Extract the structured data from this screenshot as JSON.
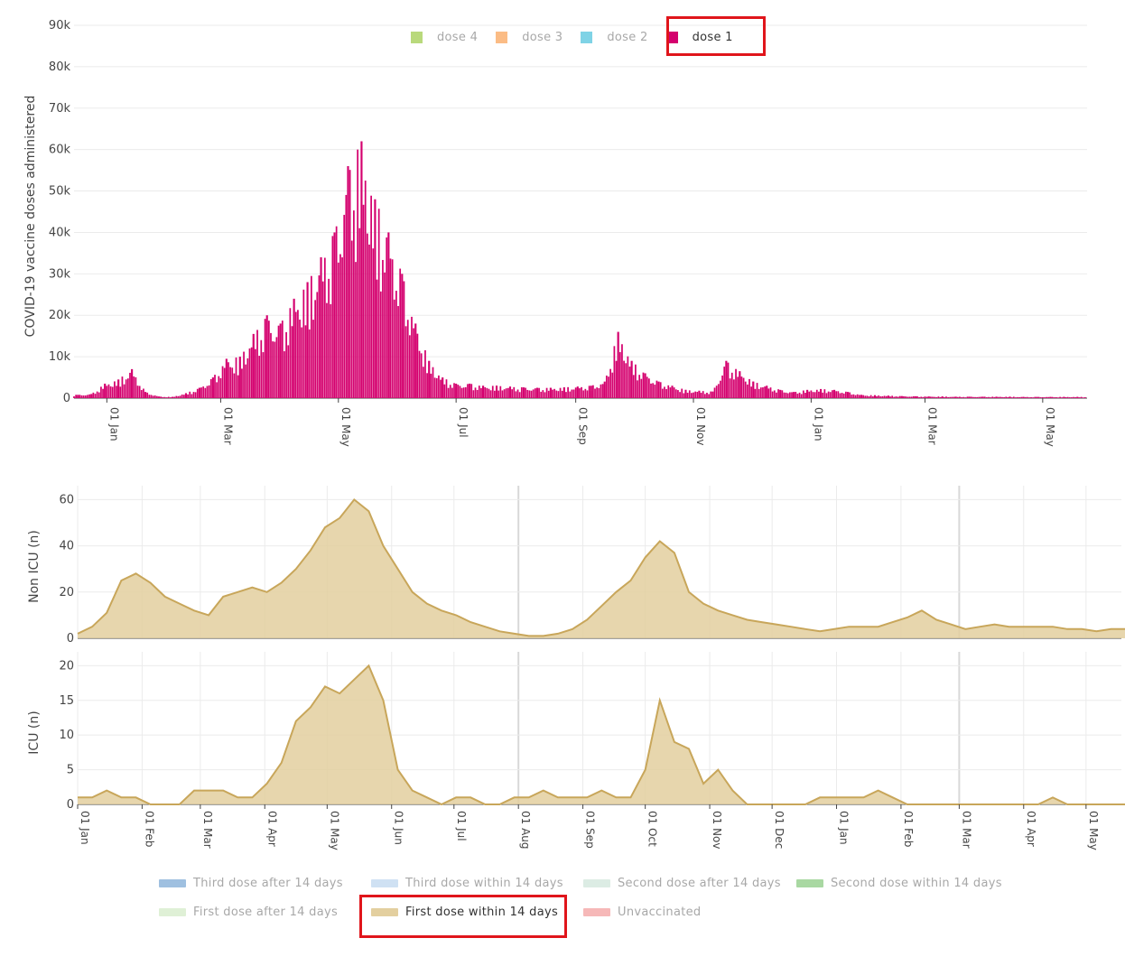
{
  "legend_top": {
    "items": [
      {
        "label": "dose 4",
        "color": "#b9d97c",
        "active": false
      },
      {
        "label": "dose 3",
        "color": "#fbbc85",
        "active": false
      },
      {
        "label": "dose 2",
        "color": "#7fd3e6",
        "active": false
      },
      {
        "label": "dose 1",
        "color": "#d4006e",
        "active": true
      }
    ]
  },
  "legend_bottom": {
    "items": [
      {
        "label": "Third dose after 14 days",
        "color": "#9fc0e0",
        "active": false
      },
      {
        "label": "Third dose within 14 days",
        "color": "#cfe1f3",
        "active": false
      },
      {
        "label": "Second dose after 14 days",
        "color": "#dcece4",
        "active": false
      },
      {
        "label": "Second dose within 14 days",
        "color": "#a9d8a2",
        "active": false
      },
      {
        "label": "First dose after 14 days",
        "color": "#dff0d6",
        "active": false
      },
      {
        "label": "First dose within 14 days",
        "color": "#e3cf9f",
        "active": true
      },
      {
        "label": "Unvaccinated",
        "color": "#f6b8b8",
        "active": false
      }
    ]
  },
  "chart_data": [
    {
      "type": "bar",
      "ylabel": "COVID-19 vaccine doses administered",
      "xlabel": "",
      "ylim": [
        0,
        90000
      ],
      "yticks": [
        "0",
        "10k",
        "20k",
        "30k",
        "40k",
        "50k",
        "60k",
        "70k",
        "80k",
        "90k"
      ],
      "xticks": [
        "01 Jan",
        "01 Mar",
        "01 May",
        "01 Jul",
        "01 Sep",
        "01 Nov",
        "01 Jan",
        "01 Mar",
        "01 May"
      ],
      "grid": true,
      "legend_position": "top",
      "bar_color": "#d4006e",
      "series": [
        {
          "name": "dose 1",
          "x": [
            "2020-12-17",
            "2020-12-24",
            "2020-12-31",
            "2021-01-07",
            "2021-01-14",
            "2021-01-21",
            "2021-01-28",
            "2021-02-04",
            "2021-02-11",
            "2021-02-18",
            "2021-02-25",
            "2021-03-04",
            "2021-03-11",
            "2021-03-18",
            "2021-03-25",
            "2021-04-01",
            "2021-04-08",
            "2021-04-15",
            "2021-04-22",
            "2021-04-29",
            "2021-05-06",
            "2021-05-13",
            "2021-05-20",
            "2021-05-27",
            "2021-06-03",
            "2021-06-10",
            "2021-06-17",
            "2021-06-24",
            "2021-07-01",
            "2021-07-08",
            "2021-07-15",
            "2021-07-22",
            "2021-07-29",
            "2021-08-05",
            "2021-08-12",
            "2021-08-19",
            "2021-08-26",
            "2021-09-02",
            "2021-09-09",
            "2021-09-16",
            "2021-09-23",
            "2021-09-30",
            "2021-10-07",
            "2021-10-14",
            "2021-10-21",
            "2021-10-28",
            "2021-11-04",
            "2021-11-11",
            "2021-11-18",
            "2021-11-25",
            "2021-12-02",
            "2021-12-09",
            "2021-12-16",
            "2021-12-23",
            "2021-12-30",
            "2022-01-06",
            "2022-01-13",
            "2022-01-20",
            "2022-01-27",
            "2022-02-03",
            "2022-02-10",
            "2022-02-17",
            "2022-02-24",
            "2022-03-03",
            "2022-03-10",
            "2022-03-17",
            "2022-03-24",
            "2022-03-31",
            "2022-04-07",
            "2022-04-14",
            "2022-04-21",
            "2022-04-28",
            "2022-05-05",
            "2022-05-12",
            "2022-05-19"
          ],
          "values": [
            800,
            1000,
            3500,
            4500,
            7000,
            1500,
            400,
            300,
            1200,
            2500,
            5000,
            9500,
            10000,
            15500,
            20000,
            18000,
            24000,
            28000,
            34000,
            40000,
            56000,
            62000,
            48000,
            40000,
            30000,
            18000,
            9000,
            5000,
            3500,
            3500,
            3000,
            3000,
            2800,
            2600,
            2500,
            2500,
            2600,
            2800,
            3000,
            4000,
            16000,
            9000,
            6000,
            4000,
            3000,
            2000,
            1800,
            1600,
            9000,
            6500,
            4000,
            3000,
            2000,
            1500,
            2000,
            2200,
            2000,
            1500,
            800,
            700,
            600,
            500,
            450,
            400,
            400,
            350,
            350,
            350,
            350,
            350,
            300,
            300,
            300,
            300,
            300
          ]
        }
      ]
    },
    {
      "type": "area",
      "ylabel": "Non ICU (n)",
      "xlabel": "",
      "ylim": [
        0,
        66
      ],
      "yticks": [
        "0",
        "20",
        "40",
        "60"
      ],
      "grid": true,
      "series": [
        {
          "name": "First dose within 14 days",
          "x": [
            "2021-01-01",
            "2021-01-08",
            "2021-01-15",
            "2021-01-22",
            "2021-01-29",
            "2021-02-05",
            "2021-02-12",
            "2021-02-19",
            "2021-02-26",
            "2021-03-05",
            "2021-03-12",
            "2021-03-19",
            "2021-03-26",
            "2021-04-02",
            "2021-04-09",
            "2021-04-16",
            "2021-04-23",
            "2021-04-30",
            "2021-05-07",
            "2021-05-14",
            "2021-05-21",
            "2021-05-28",
            "2021-06-04",
            "2021-06-11",
            "2021-06-18",
            "2021-06-25",
            "2021-07-02",
            "2021-07-09",
            "2021-07-16",
            "2021-07-23",
            "2021-07-30",
            "2021-08-06",
            "2021-08-13",
            "2021-08-20",
            "2021-08-27",
            "2021-09-03",
            "2021-09-10",
            "2021-09-17",
            "2021-09-24",
            "2021-10-01",
            "2021-10-08",
            "2021-10-15",
            "2021-10-22",
            "2021-10-29",
            "2021-11-05",
            "2021-11-12",
            "2021-11-19",
            "2021-11-26",
            "2021-12-03",
            "2021-12-10",
            "2021-12-17",
            "2021-12-24",
            "2021-12-31",
            "2022-01-07",
            "2022-01-14",
            "2022-01-21",
            "2022-01-28",
            "2022-02-04",
            "2022-02-11",
            "2022-02-18",
            "2022-02-25",
            "2022-03-04",
            "2022-03-11",
            "2022-03-18",
            "2022-03-25",
            "2022-04-01",
            "2022-04-08",
            "2022-04-15",
            "2022-04-22",
            "2022-04-29",
            "2022-05-06",
            "2022-05-13",
            "2022-05-20"
          ],
          "values": [
            2,
            5,
            11,
            25,
            28,
            24,
            18,
            15,
            12,
            10,
            18,
            20,
            22,
            20,
            24,
            30,
            38,
            48,
            52,
            60,
            55,
            40,
            30,
            20,
            15,
            12,
            10,
            7,
            5,
            3,
            2,
            1,
            1,
            2,
            4,
            8,
            14,
            20,
            25,
            35,
            42,
            37,
            20,
            15,
            12,
            10,
            8,
            7,
            6,
            5,
            4,
            3,
            4,
            5,
            5,
            5,
            7,
            9,
            12,
            8,
            6,
            4,
            5,
            6,
            5,
            5,
            5,
            5,
            4,
            4,
            3,
            4,
            4
          ]
        }
      ]
    },
    {
      "type": "area",
      "ylabel": "ICU (n)",
      "xlabel": "",
      "ylim": [
        0,
        22
      ],
      "yticks": [
        "0",
        "5",
        "10",
        "15",
        "20"
      ],
      "xticks": [
        "01 Jan",
        "01 Feb",
        "01 Mar",
        "01 Apr",
        "01 May",
        "01 Jun",
        "01 Jul",
        "01 Aug",
        "01 Sep",
        "01 Oct",
        "01 Nov",
        "01 Dec",
        "01 Jan",
        "01 Feb",
        "01 Mar",
        "01 Apr",
        "01 May"
      ],
      "grid": true,
      "series": [
        {
          "name": "First dose within 14 days",
          "x": [
            "2021-01-01",
            "2021-01-08",
            "2021-01-15",
            "2021-01-22",
            "2021-01-29",
            "2021-02-05",
            "2021-02-12",
            "2021-02-19",
            "2021-02-26",
            "2021-03-05",
            "2021-03-12",
            "2021-03-19",
            "2021-03-26",
            "2021-04-02",
            "2021-04-09",
            "2021-04-16",
            "2021-04-23",
            "2021-04-30",
            "2021-05-07",
            "2021-05-14",
            "2021-05-21",
            "2021-05-28",
            "2021-06-04",
            "2021-06-11",
            "2021-06-18",
            "2021-06-25",
            "2021-07-02",
            "2021-07-09",
            "2021-07-16",
            "2021-07-23",
            "2021-07-30",
            "2021-08-06",
            "2021-08-13",
            "2021-08-20",
            "2021-08-27",
            "2021-09-03",
            "2021-09-10",
            "2021-09-17",
            "2021-09-24",
            "2021-10-01",
            "2021-10-08",
            "2021-10-15",
            "2021-10-22",
            "2021-10-29",
            "2021-11-05",
            "2021-11-12",
            "2021-11-19",
            "2021-11-26",
            "2021-12-03",
            "2021-12-10",
            "2021-12-17",
            "2021-12-24",
            "2021-12-31",
            "2022-01-07",
            "2022-01-14",
            "2022-01-21",
            "2022-01-28",
            "2022-02-04",
            "2022-02-11",
            "2022-02-18",
            "2022-02-25",
            "2022-03-04",
            "2022-03-11",
            "2022-03-18",
            "2022-03-25",
            "2022-04-01",
            "2022-04-08",
            "2022-04-15",
            "2022-04-22",
            "2022-04-29",
            "2022-05-06",
            "2022-05-13",
            "2022-05-20"
          ],
          "values": [
            1,
            1,
            2,
            1,
            1,
            0,
            0,
            0,
            2,
            2,
            2,
            1,
            1,
            3,
            6,
            12,
            14,
            17,
            16,
            18,
            20,
            15,
            5,
            2,
            1,
            0,
            1,
            1,
            0,
            0,
            1,
            1,
            2,
            1,
            1,
            1,
            2,
            1,
            1,
            5,
            15,
            9,
            8,
            3,
            5,
            2,
            0,
            0,
            0,
            0,
            0,
            1,
            1,
            1,
            1,
            2,
            1,
            0,
            0,
            0,
            0,
            0,
            0,
            0,
            0,
            0,
            0,
            1,
            0,
            0,
            0,
            0,
            0
          ]
        }
      ]
    }
  ]
}
